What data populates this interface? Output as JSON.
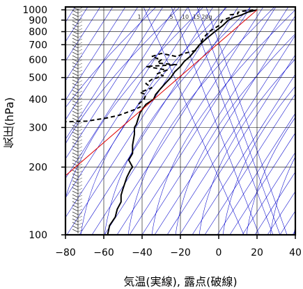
{
  "chart_data": {
    "type": "line",
    "xlabel": "気温(実線), 露点(破線)",
    "ylabel": "気圧(hPa)",
    "xlim": [
      -80,
      40
    ],
    "ylim": [
      1030,
      100
    ],
    "y_scale": "log",
    "x_ticks": [
      "−80",
      "−60",
      "−40",
      "−20",
      "0",
      "20",
      "40"
    ],
    "y_ticks": [
      "100",
      "200",
      "300",
      "400",
      "500",
      "600",
      "700",
      "800",
      "900",
      "1000"
    ],
    "mixing_ratio_labels": [
      "1",
      "5",
      "10",
      "15",
      "20g"
    ],
    "colors": {
      "background_lines": "#0000cc",
      "reference": "#e00000",
      "profiles": "#000000",
      "grid": "#000000"
    },
    "series": [
      {
        "style": "solid",
        "points": [
          [
            20,
            1000
          ],
          [
            15,
            975
          ],
          [
            12,
            950
          ],
          [
            8,
            925
          ],
          [
            5,
            900
          ],
          [
            2,
            850
          ],
          [
            -2,
            800
          ],
          [
            -6,
            750
          ],
          [
            -10,
            700
          ],
          [
            -13,
            650
          ],
          [
            -15,
            620
          ],
          [
            -18,
            590
          ],
          [
            -20,
            560
          ],
          [
            -23,
            530
          ],
          [
            -25,
            500
          ],
          [
            -28,
            470
          ],
          [
            -31,
            440
          ],
          [
            -33,
            420
          ],
          [
            -34,
            400
          ],
          [
            -38,
            380
          ],
          [
            -41,
            350
          ],
          [
            -42,
            330
          ],
          [
            -43,
            310
          ],
          [
            -44,
            300
          ],
          [
            -44,
            280
          ],
          [
            -45,
            250
          ],
          [
            -45,
            230
          ],
          [
            -47,
            215
          ],
          [
            -45,
            200
          ],
          [
            -46,
            195
          ],
          [
            -48,
            180
          ],
          [
            -50,
            160
          ],
          [
            -51,
            150
          ],
          [
            -51,
            140
          ],
          [
            -53,
            130
          ],
          [
            -54,
            120
          ],
          [
            -57,
            110
          ],
          [
            -58,
            100
          ]
        ]
      },
      {
        "style": "dashed",
        "points": [
          [
            18,
            1000
          ],
          [
            12,
            985
          ],
          [
            10,
            975
          ],
          [
            10,
            960
          ],
          [
            6,
            950
          ],
          [
            6,
            925
          ],
          [
            2,
            900
          ],
          [
            0,
            850
          ],
          [
            -5,
            800
          ],
          [
            -8,
            750
          ],
          [
            -10,
            700
          ],
          [
            -12,
            660
          ],
          [
            -18,
            640
          ],
          [
            -22,
            620
          ],
          [
            -30,
            640
          ],
          [
            -35,
            620
          ],
          [
            -30,
            600
          ],
          [
            -32,
            580
          ],
          [
            -22,
            570
          ],
          [
            -38,
            560
          ],
          [
            -27,
            540
          ],
          [
            -32,
            520
          ],
          [
            -29,
            510
          ],
          [
            -35,
            490
          ],
          [
            -38,
            470
          ],
          [
            -35,
            450
          ],
          [
            -41,
            430
          ],
          [
            -38,
            420
          ],
          [
            -39,
            400
          ],
          [
            -42,
            380
          ],
          [
            -41,
            370
          ],
          [
            -44,
            360
          ],
          [
            -52,
            340
          ],
          [
            -59,
            330
          ],
          [
            -69,
            320
          ],
          [
            -81,
            318
          ]
        ]
      },
      {
        "style": "reference",
        "points": [
          [
            20,
            1000
          ],
          [
            -81,
            180
          ]
        ]
      }
    ]
  }
}
